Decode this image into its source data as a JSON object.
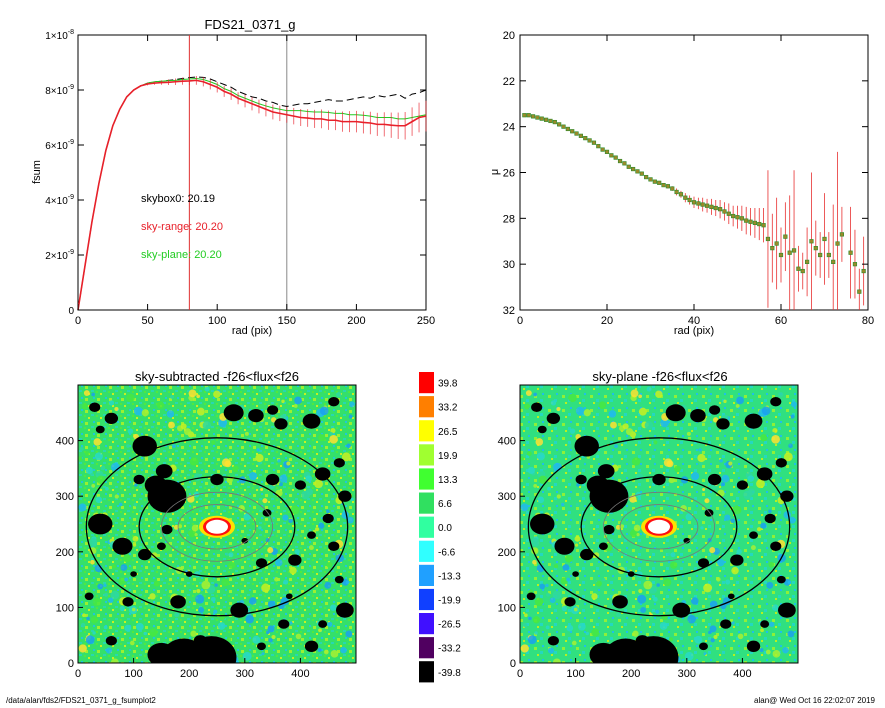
{
  "footer": {
    "path": "/data/alan/fds2/FDS21_0371_g_fsumplot2",
    "user_time": "alan@  Wed Oct 16 22:02:07 2019"
  },
  "colors": {
    "sky_range": "#e8202a",
    "sky_plane": "#22cc22",
    "skybox": "#000000",
    "marker_fill": "#9a8a2a",
    "marker_edge": "#2a8a2a",
    "vline_red": "#e03030",
    "vline_grey": "#888888"
  },
  "chart_data": [
    {
      "type": "line",
      "title": "FDS21_0371_g",
      "xlabel": "rad (pix)",
      "ylabel": "fsum",
      "xlim": [
        0,
        250
      ],
      "ylim": [
        0,
        1e-08
      ],
      "x_ticks": [
        "0",
        "50",
        "100",
        "150",
        "200",
        "250"
      ],
      "y_ticks": [
        {
          "mant": "0",
          "exp": ""
        },
        {
          "mant": "2×10",
          "exp": "-9"
        },
        {
          "mant": "4×10",
          "exp": "-9"
        },
        {
          "mant": "6×10",
          "exp": "-9"
        },
        {
          "mant": "8×10",
          "exp": "-9"
        },
        {
          "mant": "1×10",
          "exp": "-8"
        }
      ],
      "vlines": [
        80,
        150
      ],
      "annotations": [
        "skybox0: 20.19",
        "sky-range: 20.20",
        "sky-plane: 20.20"
      ],
      "series": [
        {
          "key": "skybox0",
          "x": [
            0,
            5,
            10,
            15,
            20,
            25,
            30,
            35,
            40,
            45,
            50,
            55,
            60,
            65,
            70,
            75,
            80,
            85,
            90,
            95,
            100,
            105,
            110,
            115,
            120,
            125,
            130,
            135,
            140,
            145,
            150,
            155,
            160,
            165,
            170,
            175,
            180,
            185,
            190,
            195,
            200,
            205,
            210,
            215,
            220,
            225,
            230,
            235,
            240,
            245,
            250
          ],
          "y": [
            0,
            1.6e-09,
            3.2e-09,
            4.6e-09,
            5.8e-09,
            6.7e-09,
            7.3e-09,
            7.75e-09,
            8e-09,
            8.15e-09,
            8.25e-09,
            8.3e-09,
            8.32e-09,
            8.35e-09,
            8.38e-09,
            8.42e-09,
            8.45e-09,
            8.47e-09,
            8.46e-09,
            8.4e-09,
            8.3e-09,
            8.2e-09,
            8.1e-09,
            7.95e-09,
            7.85e-09,
            7.75e-09,
            7.7e-09,
            7.6e-09,
            7.55e-09,
            7.45e-09,
            7.4e-09,
            7.45e-09,
            7.5e-09,
            7.5e-09,
            7.55e-09,
            7.6e-09,
            7.65e-09,
            7.6e-09,
            7.6e-09,
            7.65e-09,
            7.7e-09,
            7.75e-09,
            7.7e-09,
            7.8e-09,
            7.75e-09,
            7.8e-09,
            7.85e-09,
            7.7e-09,
            7.85e-09,
            7.9e-09,
            8e-09
          ]
        },
        {
          "key": "sky-plane",
          "x": [
            0,
            5,
            10,
            15,
            20,
            25,
            30,
            35,
            40,
            45,
            50,
            55,
            60,
            65,
            70,
            75,
            80,
            85,
            90,
            95,
            100,
            105,
            110,
            115,
            120,
            125,
            130,
            135,
            140,
            145,
            150,
            155,
            160,
            165,
            170,
            175,
            180,
            185,
            190,
            195,
            200,
            205,
            210,
            215,
            220,
            225,
            230,
            235,
            240,
            245,
            250
          ],
          "y": [
            0,
            1.6e-09,
            3.2e-09,
            4.6e-09,
            5.8e-09,
            6.7e-09,
            7.3e-09,
            7.75e-09,
            8e-09,
            8.15e-09,
            8.25e-09,
            8.3e-09,
            8.32e-09,
            8.34e-09,
            8.35e-09,
            8.38e-09,
            8.4e-09,
            8.42e-09,
            8.38e-09,
            8.3e-09,
            8.2e-09,
            8.05e-09,
            7.95e-09,
            7.8e-09,
            7.7e-09,
            7.6e-09,
            7.5e-09,
            7.42e-09,
            7.35e-09,
            7.3e-09,
            7.25e-09,
            7.25e-09,
            7.25e-09,
            7.22e-09,
            7.2e-09,
            7.2e-09,
            7.18e-09,
            7.15e-09,
            7.15e-09,
            7.1e-09,
            7.1e-09,
            7.08e-09,
            7.05e-09,
            7e-09,
            7e-09,
            7e-09,
            6.95e-09,
            6.95e-09,
            7e-09,
            7.05e-09,
            7.1e-09
          ]
        },
        {
          "key": "sky-range",
          "x": [
            0,
            5,
            10,
            15,
            20,
            25,
            30,
            35,
            40,
            45,
            50,
            55,
            60,
            65,
            70,
            75,
            80,
            85,
            90,
            95,
            100,
            105,
            110,
            115,
            120,
            125,
            130,
            135,
            140,
            145,
            150,
            155,
            160,
            165,
            170,
            175,
            180,
            185,
            190,
            195,
            200,
            205,
            210,
            215,
            220,
            225,
            230,
            235,
            240,
            245,
            250
          ],
          "y": [
            0,
            1.6e-09,
            3.2e-09,
            4.6e-09,
            5.8e-09,
            6.7e-09,
            7.3e-09,
            7.75e-09,
            8e-09,
            8.15e-09,
            8.22e-09,
            8.25e-09,
            8.27e-09,
            8.28e-09,
            8.3e-09,
            8.32e-09,
            8.33e-09,
            8.35e-09,
            8.3e-09,
            8.2e-09,
            8.1e-09,
            7.95e-09,
            7.85e-09,
            7.7e-09,
            7.6e-09,
            7.5e-09,
            7.4e-09,
            7.3e-09,
            7.2e-09,
            7.15e-09,
            7.1e-09,
            7.05e-09,
            7e-09,
            6.98e-09,
            6.95e-09,
            6.95e-09,
            6.9e-09,
            6.9e-09,
            6.85e-09,
            6.85e-09,
            6.85e-09,
            6.82e-09,
            6.8e-09,
            6.75e-09,
            6.75e-09,
            6.72e-09,
            6.7e-09,
            6.7e-09,
            6.85e-09,
            7e-09,
            7.05e-09
          ],
          "err": [
            0,
            0,
            0,
            0,
            0,
            0,
            0,
            0,
            0,
            2e-11,
            5e-11,
            6e-11,
            8e-11,
            1e-10,
            1.2e-10,
            1.3e-10,
            1.5e-10,
            1.6e-10,
            1.7e-10,
            1.8e-10,
            1.9e-10,
            2e-10,
            2.1e-10,
            2.2e-10,
            2.3e-10,
            2.4e-10,
            2.5e-10,
            2.6e-10,
            2.7e-10,
            2.8e-10,
            2.9e-10,
            3e-10,
            3.1e-10,
            3.2e-10,
            3.3e-10,
            3.4e-10,
            3.5e-10,
            3.6e-10,
            3.7e-10,
            3.8e-10,
            3.9e-10,
            4e-10,
            4.1e-10,
            4.2e-10,
            4.4e-10,
            4.6e-10,
            4.8e-10,
            5e-10,
            5.2e-10,
            5.4e-10,
            5.6e-10
          ]
        }
      ]
    },
    {
      "type": "scatter",
      "title": "",
      "xlabel": "rad (pix)",
      "ylabel": "μ",
      "xlim": [
        0,
        80
      ],
      "ylim": [
        32,
        20
      ],
      "x_ticks": [
        "0",
        "20",
        "40",
        "60",
        "80"
      ],
      "y_ticks": [
        "20",
        "22",
        "24",
        "26",
        "28",
        "30",
        "32"
      ],
      "series": [
        {
          "name": "",
          "x": [
            1,
            2,
            3,
            4,
            5,
            6,
            7,
            8,
            9,
            10,
            11,
            12,
            13,
            14,
            15,
            16,
            17,
            18,
            19,
            20,
            21,
            22,
            23,
            24,
            25,
            26,
            27,
            28,
            29,
            30,
            31,
            32,
            33,
            34,
            35,
            36,
            37,
            38,
            39,
            40,
            41,
            42,
            43,
            44,
            45,
            46,
            47,
            48,
            49,
            50,
            51,
            52,
            53,
            54,
            55,
            56,
            57,
            58,
            59,
            60,
            61,
            62,
            63,
            64,
            65,
            66,
            67,
            68,
            69,
            70,
            71,
            72,
            73,
            74,
            76,
            77,
            78,
            79
          ],
          "y": [
            23.5,
            23.5,
            23.55,
            23.6,
            23.65,
            23.7,
            23.75,
            23.8,
            23.9,
            24.0,
            24.1,
            24.2,
            24.3,
            24.4,
            24.5,
            24.6,
            24.7,
            24.85,
            25.0,
            25.1,
            25.25,
            25.35,
            25.5,
            25.6,
            25.75,
            25.85,
            25.95,
            26.05,
            26.2,
            26.3,
            26.4,
            26.45,
            26.55,
            26.6,
            26.7,
            26.85,
            26.95,
            27.1,
            27.2,
            27.3,
            27.35,
            27.4,
            27.45,
            27.5,
            27.55,
            27.6,
            27.7,
            27.8,
            27.9,
            27.95,
            28.0,
            28.1,
            28.15,
            28.2,
            28.25,
            28.3,
            28.9,
            29.3,
            29.1,
            29.6,
            28.8,
            29.5,
            29.4,
            30.2,
            30.3,
            29.9,
            29.0,
            29.3,
            29.6,
            28.9,
            29.6,
            29.9,
            29.1,
            28.7,
            29.5,
            30.0,
            31.2,
            30.3
          ],
          "err": [
            0,
            0,
            0,
            0,
            0,
            0,
            0,
            0,
            0,
            0,
            0,
            0,
            0,
            0,
            0,
            0,
            0,
            0,
            0,
            0,
            0,
            0,
            0,
            0,
            0,
            0,
            0,
            0,
            0,
            0,
            0,
            0,
            0,
            0.1,
            0.1,
            0.15,
            0.15,
            0.2,
            0.2,
            0.25,
            0.25,
            0.3,
            0.3,
            0.35,
            0.35,
            0.4,
            0.4,
            0.45,
            0.45,
            0.5,
            0.55,
            0.6,
            0.6,
            0.65,
            0.7,
            0.75,
            3,
            1.5,
            2,
            1.2,
            1.5,
            2.5,
            3.5,
            1,
            0.8,
            1.5,
            3,
            1.2,
            1,
            2,
            1,
            2.5,
            4,
            1.2,
            2,
            1.5,
            1,
            1.5
          ]
        }
      ]
    },
    {
      "type": "heatmap",
      "title": "sky-subtracted -f26<flux<f26",
      "xlim": [
        0,
        500
      ],
      "ylim": [
        0,
        500
      ],
      "x_ticks": [
        "0",
        "100",
        "200",
        "300",
        "400"
      ],
      "y_ticks": [
        "0",
        "100",
        "200",
        "300",
        "400"
      ],
      "center": [
        250,
        245
      ],
      "ellipses": [
        {
          "a": 70,
          "b": 40
        },
        {
          "a": 140,
          "b": 90
        },
        {
          "a": 235,
          "b": 160
        }
      ],
      "masks": [
        [
          120,
          390,
          22
        ],
        [
          155,
          345,
          15
        ],
        [
          60,
          440,
          12
        ],
        [
          280,
          450,
          18
        ],
        [
          320,
          445,
          14
        ],
        [
          350,
          455,
          10
        ],
        [
          365,
          430,
          12
        ],
        [
          420,
          435,
          16
        ],
        [
          460,
          470,
          10
        ],
        [
          30,
          460,
          10
        ],
        [
          40,
          420,
          8
        ],
        [
          160,
          300,
          35
        ],
        [
          140,
          320,
          20
        ],
        [
          110,
          330,
          10
        ],
        [
          250,
          330,
          12
        ],
        [
          350,
          330,
          12
        ],
        [
          400,
          320,
          10
        ],
        [
          440,
          340,
          14
        ],
        [
          470,
          360,
          10
        ],
        [
          480,
          300,
          12
        ],
        [
          40,
          250,
          22
        ],
        [
          80,
          210,
          18
        ],
        [
          120,
          195,
          12
        ],
        [
          160,
          240,
          10
        ],
        [
          150,
          210,
          8
        ],
        [
          330,
          180,
          10
        ],
        [
          390,
          185,
          12
        ],
        [
          420,
          230,
          8
        ],
        [
          460,
          210,
          10
        ],
        [
          180,
          110,
          14
        ],
        [
          90,
          110,
          10
        ],
        [
          290,
          95,
          16
        ],
        [
          370,
          70,
          10
        ],
        [
          420,
          30,
          12
        ],
        [
          480,
          95,
          16
        ],
        [
          470,
          150,
          8
        ],
        [
          220,
          40,
          12
        ],
        [
          60,
          40,
          10
        ],
        [
          20,
          120,
          8
        ],
        [
          340,
          270,
          8
        ],
        [
          450,
          260,
          10
        ],
        [
          200,
          160,
          6
        ],
        [
          300,
          220,
          6
        ],
        [
          100,
          160,
          6
        ],
        [
          190,
          10,
          40
        ],
        [
          240,
          10,
          45
        ],
        [
          150,
          15,
          25
        ],
        [
          330,
          30,
          8
        ],
        [
          440,
          70,
          8
        ],
        [
          380,
          120,
          6
        ]
      ],
      "colorbar": [
        "39.8",
        "33.2",
        "26.5",
        "19.9",
        "13.3",
        "6.6",
        "0.0",
        "-6.6",
        "-13.3",
        "-19.9",
        "-26.5",
        "-33.2",
        "-39.8"
      ],
      "colorbar_colors": [
        "#ff0000",
        "#ff7f00",
        "#ffff00",
        "#a0ff30",
        "#40ff30",
        "#30e060",
        "#30ffa0",
        "#30ffff",
        "#20a0ff",
        "#1040ff",
        "#4010ff",
        "#500060",
        "#000000"
      ]
    },
    {
      "type": "heatmap",
      "title": "sky-plane -f26<flux<f26",
      "xlim": [
        0,
        500
      ],
      "ylim": [
        0,
        500
      ],
      "x_ticks": [
        "0",
        "100",
        "200",
        "300",
        "400"
      ],
      "y_ticks": [
        "0",
        "100",
        "200",
        "300",
        "400"
      ]
    }
  ]
}
